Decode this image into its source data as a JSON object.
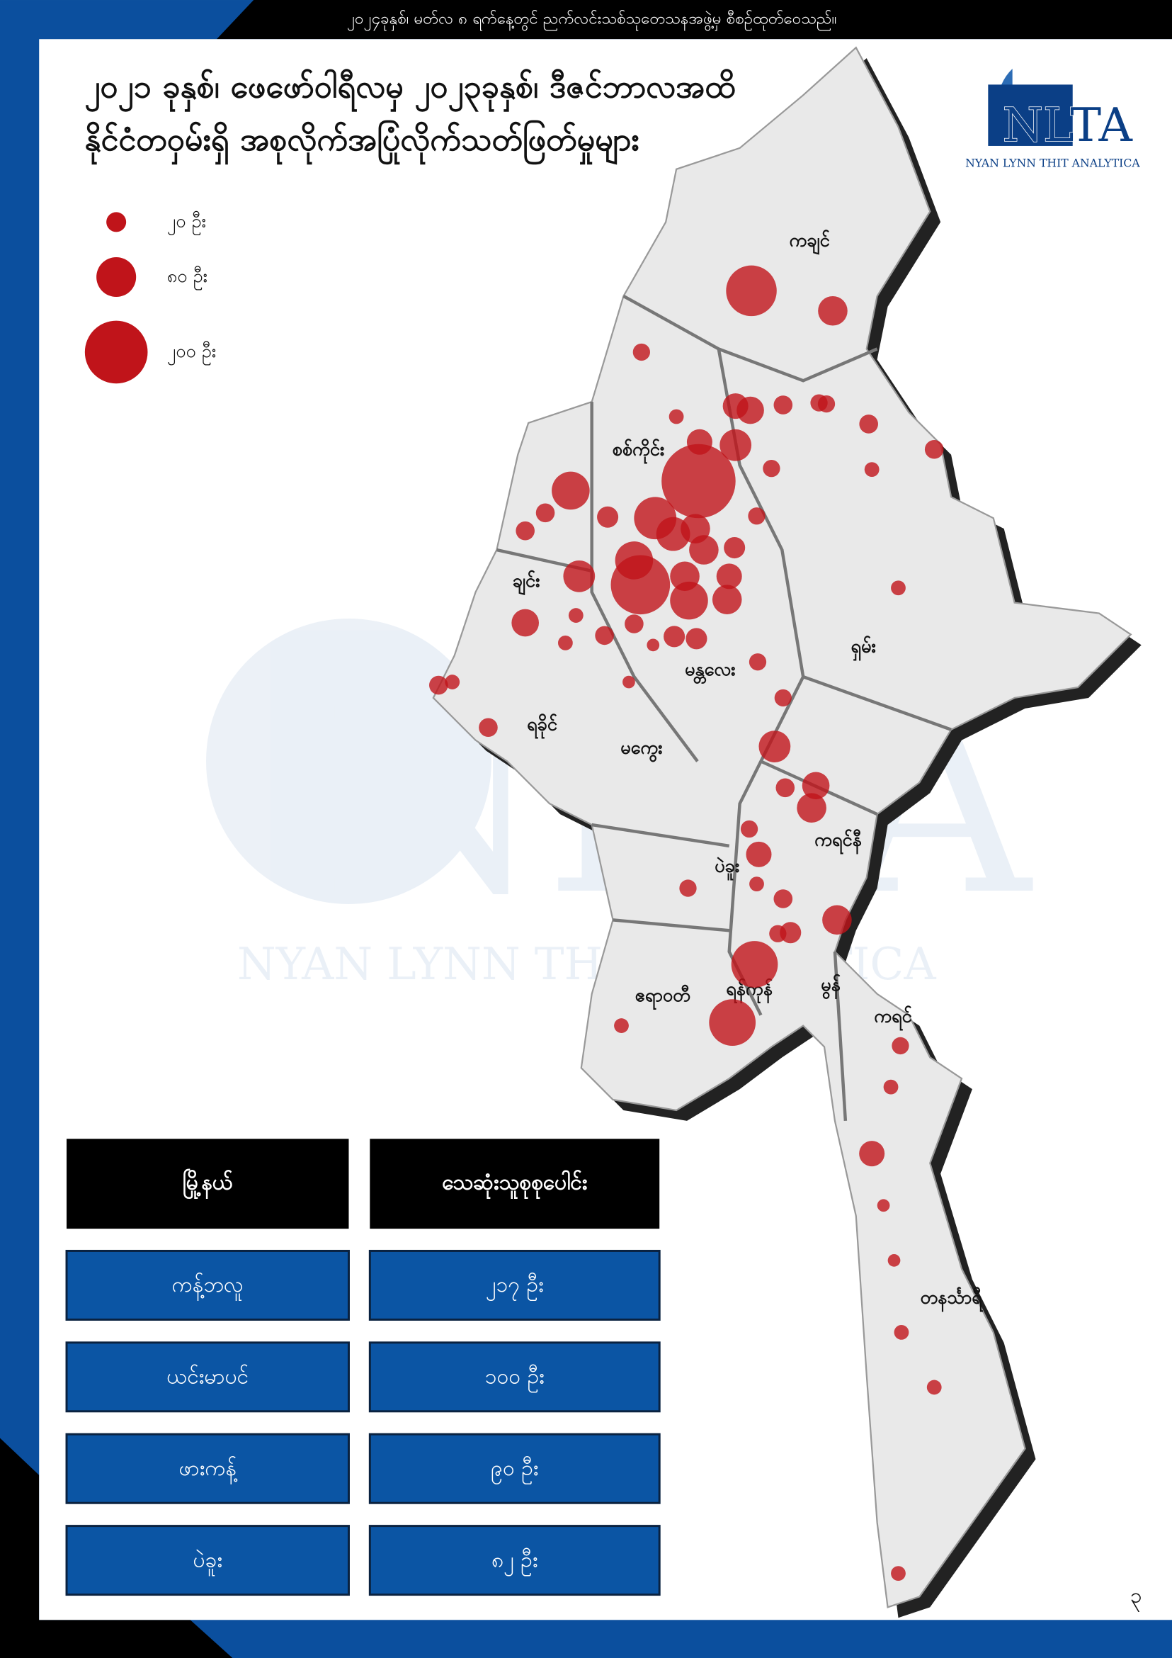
{
  "banner": "၂၀၂၄ခုနှစ်၊ မတ်လ ၈ ရက်နေ့တွင် ညက်လင်းသစ်သုတေသနအဖွဲ့မှ စီစဉ်ထုတ်ဝေသည်။",
  "title": {
    "line1": "၂၀၂၁ ခုနှစ်၊ ဖေဖော်ဝါရီလမှ ၂၀၂၃ခုနှစ်၊ ဒီဇင်ဘာလအထိ",
    "line2": "နိုင်ငံတဝှမ်းရှိ အစုလိုက်အပြုံလိုက်သတ်ဖြတ်မှုများ"
  },
  "logo": {
    "mark": "NLTA",
    "name": "NYAN LYNN THIT ANALYTICA"
  },
  "legend": [
    {
      "value": 20,
      "label": "၂၀ ဦး"
    },
    {
      "value": 80,
      "label": "၈၀ ဦး"
    },
    {
      "value": 200,
      "label": "၂၀၀ ဦး"
    }
  ],
  "bubble_color": "#c0141a",
  "regions": [
    "ကချင်",
    "စစ်ကိုင်း",
    "ချင်း",
    "ရှမ်း",
    "မန္တလေး",
    "ရခိုင်",
    "မကွေး",
    "ကရင်နီ",
    "ပဲခူး",
    "ဧရာဝတီ",
    "ရန်ကုန်",
    "မွန်",
    "ကရင်",
    "တနင်္သာရီ"
  ],
  "bubbles": [
    130,
    44,
    15,
    33,
    38,
    18,
    15,
    15,
    18,
    11,
    33,
    51,
    278,
    15,
    11,
    18,
    73,
    18,
    23,
    18,
    15,
    91,
    58,
    44,
    44,
    73,
    23,
    51,
    178,
    44,
    33,
    44,
    73,
    11,
    38,
    18,
    18,
    8,
    23,
    23,
    11,
    15,
    11,
    8,
    18,
    11,
    18,
    15,
    51,
    18,
    38,
    44,
    15,
    33,
    11,
    15,
    18,
    44,
    15,
    23,
    110,
    110,
    11,
    15,
    11,
    33,
    8,
    8,
    11,
    11,
    11
  ],
  "table": {
    "header": [
      "မြို့နယ်",
      "သေဆုံးသူစုစုပေါင်း"
    ],
    "rows": [
      [
        "ကန့်ဘလူ",
        "၂၁၇ ဦး"
      ],
      [
        "ယင်းမာပင်",
        "၁၀၀ ဦး"
      ],
      [
        "ဖားကန့်",
        "၉၀ ဦး"
      ],
      [
        "ပဲခူး",
        "၈၂ ဦး"
      ]
    ]
  },
  "page_number": "၃"
}
